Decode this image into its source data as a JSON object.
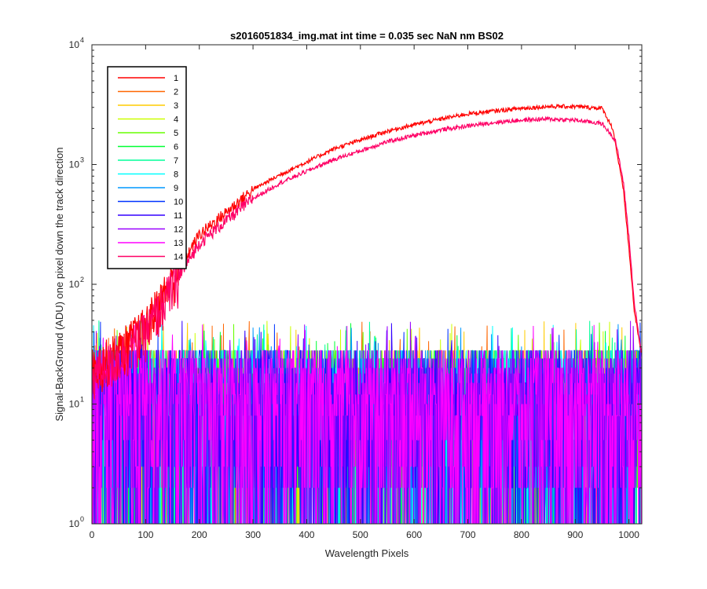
{
  "chart_data": {
    "type": "line",
    "title": "s2016051834_img.mat int time = 0.035 sec  NaN nm BS02",
    "xlabel": "Wavelength Pixels",
    "ylabel": "Signal-BackGround (ADU) one pixel down the track direction",
    "xlim": [
      0,
      1024
    ],
    "ylim": [
      1,
      10000
    ],
    "yscale": "log",
    "x_ticks": [
      0,
      100,
      200,
      300,
      400,
      500,
      600,
      700,
      800,
      900,
      1000
    ],
    "y_ticks": [
      {
        "value": 1,
        "base": "10",
        "exp": "0"
      },
      {
        "value": 10,
        "base": "10",
        "exp": "1"
      },
      {
        "value": 100,
        "base": "10",
        "exp": "2"
      },
      {
        "value": 1000,
        "base": "10",
        "exp": "3"
      },
      {
        "value": 10000,
        "base": "10",
        "exp": "4"
      }
    ],
    "grid": false,
    "legend_position": "top-left",
    "series": [
      {
        "name": "1",
        "color": "#ff0000",
        "kind": "signal",
        "points": [
          [
            0,
            20
          ],
          [
            50,
            28
          ],
          [
            100,
            45
          ],
          [
            150,
            110
          ],
          [
            200,
            260
          ],
          [
            250,
            400
          ],
          [
            300,
            620
          ],
          [
            350,
            820
          ],
          [
            400,
            1050
          ],
          [
            450,
            1350
          ],
          [
            500,
            1600
          ],
          [
            550,
            1900
          ],
          [
            600,
            2150
          ],
          [
            650,
            2400
          ],
          [
            700,
            2650
          ],
          [
            750,
            2800
          ],
          [
            800,
            2950
          ],
          [
            850,
            3050
          ],
          [
            900,
            3050
          ],
          [
            950,
            2950
          ],
          [
            970,
            2000
          ],
          [
            990,
            600
          ],
          [
            1000,
            200
          ],
          [
            1010,
            60
          ],
          [
            1024,
            25
          ]
        ]
      },
      {
        "name": "2",
        "color": "#ff6600",
        "kind": "noise"
      },
      {
        "name": "3",
        "color": "#ffcc00",
        "kind": "noise"
      },
      {
        "name": "4",
        "color": "#ccff00",
        "kind": "noise"
      },
      {
        "name": "5",
        "color": "#66ff00",
        "kind": "noise"
      },
      {
        "name": "6",
        "color": "#00ff33",
        "kind": "noise"
      },
      {
        "name": "7",
        "color": "#00ff99",
        "kind": "noise"
      },
      {
        "name": "8",
        "color": "#00ffff",
        "kind": "noise"
      },
      {
        "name": "9",
        "color": "#0099ff",
        "kind": "noise"
      },
      {
        "name": "10",
        "color": "#0033ff",
        "kind": "noise"
      },
      {
        "name": "11",
        "color": "#3300ff",
        "kind": "noise"
      },
      {
        "name": "12",
        "color": "#9900ff",
        "kind": "noise"
      },
      {
        "name": "13",
        "color": "#ff00ff",
        "kind": "noise"
      },
      {
        "name": "14",
        "color": "#ff0066",
        "kind": "signal",
        "points": [
          [
            0,
            18
          ],
          [
            50,
            25
          ],
          [
            100,
            40
          ],
          [
            150,
            95
          ],
          [
            200,
            220
          ],
          [
            250,
            340
          ],
          [
            300,
            520
          ],
          [
            350,
            700
          ],
          [
            400,
            880
          ],
          [
            450,
            1100
          ],
          [
            500,
            1300
          ],
          [
            550,
            1550
          ],
          [
            600,
            1750
          ],
          [
            650,
            1950
          ],
          [
            700,
            2100
          ],
          [
            750,
            2250
          ],
          [
            800,
            2350
          ],
          [
            850,
            2400
          ],
          [
            900,
            2350
          ],
          [
            950,
            2200
          ],
          [
            975,
            1600
          ],
          [
            990,
            700
          ],
          [
            1000,
            250
          ],
          [
            1010,
            70
          ],
          [
            1024,
            25
          ]
        ]
      }
    ]
  }
}
